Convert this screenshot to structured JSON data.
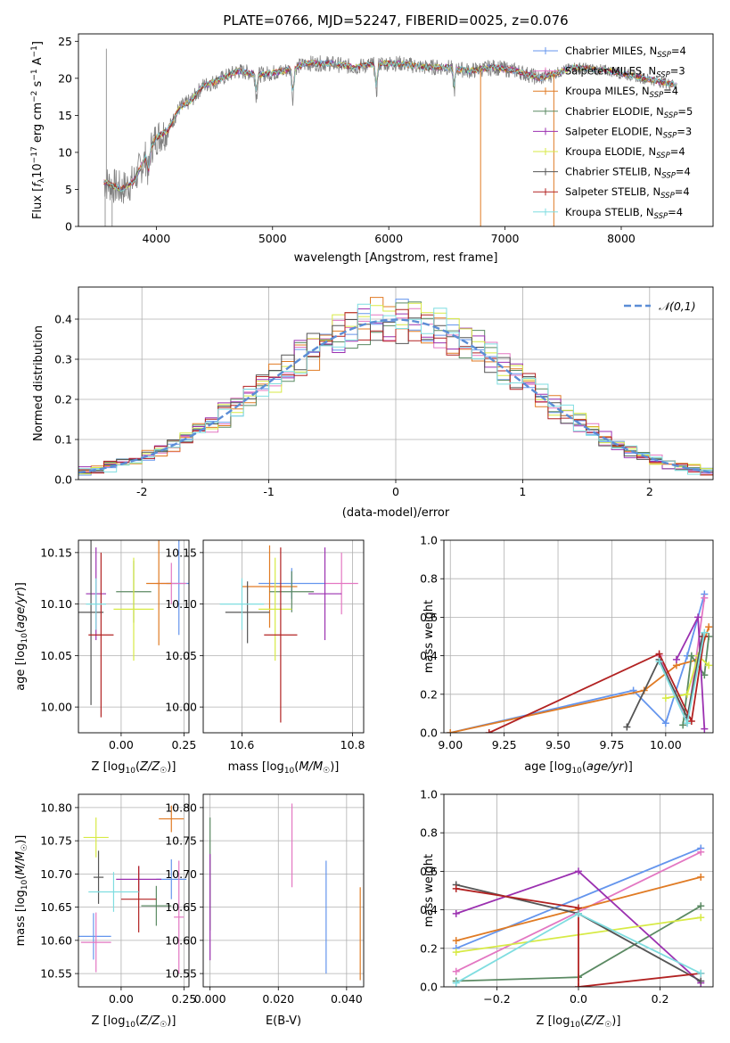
{
  "figure": {
    "title": "PLATE=0766, MJD=52247, FIBERID=0025, z=0.076"
  },
  "models": [
    {
      "label": "Chabrier MILES, N",
      "sub": "SSP",
      "suffix": "=4",
      "color": "#6495ED"
    },
    {
      "label": "Salpeter MILES, N",
      "sub": "SSP",
      "suffix": "=3",
      "color": "#E377C2"
    },
    {
      "label": "Kroupa MILES, N",
      "sub": "SSP",
      "suffix": "=4",
      "color": "#E07B24"
    },
    {
      "label": "Chabrier ELODIE, N",
      "sub": "SSP",
      "suffix": "=5",
      "color": "#5B8A63"
    },
    {
      "label": "Salpeter ELODIE, N",
      "sub": "SSP",
      "suffix": "=3",
      "color": "#9B30B0"
    },
    {
      "label": "Kroupa ELODIE, N",
      "sub": "SSP",
      "suffix": "=4",
      "color": "#D7EA45"
    },
    {
      "label": "Chabrier STELIB, N",
      "sub": "SSP",
      "suffix": "=4",
      "color": "#555555"
    },
    {
      "label": "Salpeter STELIB, N",
      "sub": "SSP",
      "suffix": "=4",
      "color": "#B22222"
    },
    {
      "label": "Kroupa STELIB, N",
      "sub": "SSP",
      "suffix": "=4",
      "color": "#7FDDE0"
    }
  ],
  "chart_data": [
    {
      "type": "line",
      "name": "spectrum",
      "xlabel": "wavelength [Angstrom, rest frame]",
      "ylabel": "Flux [f_λ 10^-17 erg cm^-2 s^-1 A^-1]",
      "xlim": [
        3330,
        8790
      ],
      "ylim": [
        0,
        26
      ],
      "xticks": [
        4000,
        5000,
        6000,
        7000,
        8000
      ],
      "yticks": [
        0,
        5,
        10,
        15,
        20,
        25
      ],
      "data_color": "#808080",
      "continuum_points": [
        [
          3550,
          6
        ],
        [
          3700,
          5
        ],
        [
          3800,
          6
        ],
        [
          3900,
          9
        ],
        [
          4000,
          12
        ],
        [
          4100,
          13
        ],
        [
          4200,
          16
        ],
        [
          4300,
          17
        ],
        [
          4400,
          19
        ],
        [
          4500,
          19.5
        ],
        [
          4700,
          21
        ],
        [
          4900,
          20.5
        ],
        [
          5100,
          21
        ],
        [
          5300,
          22
        ],
        [
          5500,
          22
        ],
        [
          5700,
          21.5
        ],
        [
          5900,
          22
        ],
        [
          6100,
          22
        ],
        [
          6300,
          21.5
        ],
        [
          6500,
          21.5
        ],
        [
          6700,
          21
        ],
        [
          6900,
          21.5
        ],
        [
          7100,
          21
        ],
        [
          7300,
          20
        ],
        [
          7600,
          21.5
        ],
        [
          7900,
          21
        ],
        [
          8200,
          20
        ],
        [
          8500,
          19
        ]
      ],
      "absorption_lines": [
        [
          3933,
          3
        ],
        [
          4861,
          3
        ],
        [
          5175,
          4
        ],
        [
          5893,
          4
        ],
        [
          6563,
          3
        ]
      ]
    },
    {
      "type": "histogram",
      "name": "residuals",
      "xlabel": "(data-model)/error",
      "ylabel": "Normed distribution",
      "xlim": [
        -2.5,
        2.5
      ],
      "ylim": [
        0,
        0.48
      ],
      "xticks": [
        -2,
        -1,
        0,
        1,
        2
      ],
      "yticks": [
        0.0,
        0.1,
        0.2,
        0.3,
        0.4
      ],
      "bin_width": 0.1,
      "reference_curve": {
        "label": "𝒩(0,1)",
        "mean": 0,
        "sigma": 1,
        "color": "#5B8DD6"
      }
    },
    {
      "type": "errorbar",
      "name": "age-vs-Z",
      "xlabel": "Z [log10(Z/Z☉)]",
      "ylabel": "age  [log10(age/yr)]",
      "xlim": [
        -0.17,
        0.27
      ],
      "ylim": [
        9.975,
        10.162
      ],
      "xticks": [
        0.0,
        0.25
      ],
      "yticks": [
        10.0,
        10.05,
        10.1,
        10.15
      ],
      "points": [
        {
          "x": 0.23,
          "y": 10.12,
          "xerr": 0.05,
          "yerr": 0.05
        },
        {
          "x": 0.2,
          "y": 10.12,
          "xerr": 0.06,
          "yerr": 0.02
        },
        {
          "x": 0.15,
          "y": 10.12,
          "xerr": 0.05,
          "yerr": 0.06
        },
        {
          "x": 0.05,
          "y": 10.112,
          "xerr": 0.07,
          "yerr": 0.03
        },
        {
          "x": -0.1,
          "y": 10.11,
          "xerr": 0.04,
          "yerr": 0.045
        },
        {
          "x": 0.05,
          "y": 10.095,
          "xerr": 0.08,
          "yerr": 0.05
        },
        {
          "x": -0.12,
          "y": 10.092,
          "xerr": 0.05,
          "yerr": 0.09
        },
        {
          "x": -0.08,
          "y": 10.07,
          "xerr": 0.05,
          "yerr": 0.08
        },
        {
          "x": -0.1,
          "y": 10.1,
          "xerr": 0.04,
          "yerr": 0.025
        }
      ]
    },
    {
      "type": "errorbar",
      "name": "age-vs-mass",
      "xlabel": "mass [log10(M/M☉)]",
      "ylabel": "",
      "xlim": [
        10.53,
        10.82
      ],
      "ylim": [
        9.975,
        10.162
      ],
      "xticks": [
        10.6,
        10.8
      ],
      "yticks": [
        10.0,
        10.05,
        10.1,
        10.15
      ],
      "points": [
        {
          "x": 10.69,
          "y": 10.12,
          "xerr": 0.06,
          "yerr": 0.015
        },
        {
          "x": 10.78,
          "y": 10.12,
          "xerr": 0.03,
          "yerr": 0.03
        },
        {
          "x": 10.65,
          "y": 10.117,
          "xerr": 0.05,
          "yerr": 0.04
        },
        {
          "x": 10.69,
          "y": 10.112,
          "xerr": 0.04,
          "yerr": 0.02
        },
        {
          "x": 10.75,
          "y": 10.11,
          "xerr": 0.03,
          "yerr": 0.045
        },
        {
          "x": 10.66,
          "y": 10.095,
          "xerr": 0.03,
          "yerr": 0.05
        },
        {
          "x": 10.61,
          "y": 10.092,
          "xerr": 0.04,
          "yerr": 0.03
        },
        {
          "x": 10.67,
          "y": 10.07,
          "xerr": 0.03,
          "yerr": 0.085
        },
        {
          "x": 10.6,
          "y": 10.1,
          "xerr": 0.04,
          "yerr": 0.025
        }
      ]
    },
    {
      "type": "line",
      "name": "mass-weight-vs-age",
      "xlabel": "age  [log10(age/yr)]",
      "ylabel": "mass weight",
      "xlim": [
        8.97,
        10.22
      ],
      "ylim": [
        0,
        1.0
      ],
      "xticks": [
        9.0,
        9.25,
        9.5,
        9.75,
        10.0
      ],
      "yticks": [
        0.0,
        0.2,
        0.4,
        0.6,
        0.8,
        1.0
      ],
      "series": [
        {
          "x": [
            9.0,
            9.85,
            10.0,
            10.1,
            10.18
          ],
          "y": [
            0.0,
            0.22,
            0.05,
            0.4,
            0.72
          ]
        },
        {
          "x": [
            9.97,
            10.1,
            10.18
          ],
          "y": [
            0.4,
            0.05,
            0.7
          ]
        },
        {
          "x": [
            9.0,
            9.9,
            10.05,
            10.15,
            10.2
          ],
          "y": [
            0.0,
            0.22,
            0.35,
            0.38,
            0.55
          ]
        },
        {
          "x": [
            10.08,
            10.12,
            10.18,
            10.2
          ],
          "y": [
            0.04,
            0.4,
            0.3,
            0.5
          ]
        },
        {
          "x": [
            10.05,
            10.15,
            10.18
          ],
          "y": [
            0.38,
            0.6,
            0.02
          ]
        },
        {
          "x": [
            10.0,
            10.1,
            10.15,
            10.2
          ],
          "y": [
            0.18,
            0.2,
            0.4,
            0.35
          ]
        },
        {
          "x": [
            9.82,
            9.97,
            10.1,
            10.17
          ],
          "y": [
            0.03,
            0.38,
            0.08,
            0.5
          ]
        },
        {
          "x": [
            9.18,
            9.97,
            10.12,
            10.18
          ],
          "y": [
            0.0,
            0.41,
            0.06,
            0.5
          ]
        },
        {
          "x": [
            9.97,
            10.1,
            10.18
          ],
          "y": [
            0.37,
            0.05,
            0.52
          ]
        }
      ]
    },
    {
      "type": "errorbar",
      "name": "mass-vs-Z",
      "xlabel": "Z [log10(Z/Z☉)]",
      "ylabel": "mass [log10(M/M☉)]",
      "xlim": [
        -0.17,
        0.27
      ],
      "ylim": [
        10.53,
        10.82
      ],
      "xticks": [
        0.0,
        0.25
      ],
      "yticks": [
        10.55,
        10.6,
        10.65,
        10.7,
        10.75,
        10.8
      ],
      "points": [
        {
          "x": 0.2,
          "y": 10.692,
          "xerr": 0.06,
          "yerr": 0.03
        },
        {
          "x": 0.23,
          "y": 10.635,
          "xerr": 0.02,
          "yerr": 0.085
        },
        {
          "x": 0.2,
          "y": 10.783,
          "xerr": 0.05,
          "yerr": 0.02
        },
        {
          "x": 0.14,
          "y": 10.652,
          "xerr": 0.06,
          "yerr": 0.03
        },
        {
          "x": 0.07,
          "y": 10.692,
          "xerr": 0.09,
          "yerr": 0.02
        },
        {
          "x": -0.1,
          "y": 10.755,
          "xerr": 0.05,
          "yerr": 0.03
        },
        {
          "x": -0.09,
          "y": 10.695,
          "xerr": 0.02,
          "yerr": 0.04
        },
        {
          "x": 0.07,
          "y": 10.662,
          "xerr": 0.07,
          "yerr": 0.05
        },
        {
          "x": -0.03,
          "y": 10.673,
          "xerr": 0.1,
          "yerr": 0.03
        },
        {
          "x": -0.11,
          "y": 10.606,
          "xerr": 0.07,
          "yerr": 0.035
        },
        {
          "x": -0.1,
          "y": 10.597,
          "xerr": 0.06,
          "yerr": 0.045
        }
      ]
    },
    {
      "type": "errorbar",
      "name": "mass-vs-EBV",
      "xlabel": "E(B-V)",
      "ylabel": "",
      "xlim": [
        -0.002,
        0.045
      ],
      "ylim": [
        10.53,
        10.82
      ],
      "xticks": [
        0.0,
        0.02,
        0.04
      ],
      "yticks": [
        10.55,
        10.6,
        10.65,
        10.7,
        10.75,
        10.8
      ],
      "points": [
        {
          "x": 0.034,
          "y": 10.635,
          "yerr": 0.085
        },
        {
          "x": 0.024,
          "y": 10.743,
          "yerr": 0.063
        },
        {
          "x": 0.044,
          "y": 10.61,
          "yerr": 0.07
        },
        {
          "x": 0.0,
          "y": 10.7,
          "yerr": 0.085
        },
        {
          "x": 0.0,
          "y": 10.65,
          "yerr": 0.08
        }
      ]
    },
    {
      "type": "line",
      "name": "mass-weight-vs-Z",
      "xlabel": "Z [log10(Z/Z☉)]",
      "ylabel": "mass weight",
      "xlim": [
        -0.33,
        0.33
      ],
      "ylim": [
        0,
        1.0
      ],
      "xticks": [
        -0.2,
        0.0,
        0.2
      ],
      "yticks": [
        0.0,
        0.2,
        0.4,
        0.6,
        0.8,
        1.0
      ],
      "series": [
        {
          "x": [
            -0.3,
            0.3
          ],
          "y": [
            0.2,
            0.72
          ]
        },
        {
          "x": [
            -0.3,
            0.3
          ],
          "y": [
            0.08,
            0.7
          ]
        },
        {
          "x": [
            -0.3,
            0.3
          ],
          "y": [
            0.24,
            0.57
          ]
        },
        {
          "x": [
            -0.3,
            0.0,
            0.3
          ],
          "y": [
            0.03,
            0.05,
            0.42
          ]
        },
        {
          "x": [
            -0.3,
            0.0,
            0.3
          ],
          "y": [
            0.38,
            0.6,
            0.02
          ]
        },
        {
          "x": [
            -0.3,
            0.3
          ],
          "y": [
            0.18,
            0.36
          ]
        },
        {
          "x": [
            -0.3,
            0.0,
            0.3
          ],
          "y": [
            0.53,
            0.38,
            0.03
          ]
        },
        {
          "x": [
            -0.3,
            0.0,
            0.0,
            0.3
          ],
          "y": [
            0.51,
            0.41,
            0.0,
            0.07
          ]
        },
        {
          "x": [
            -0.3,
            0.0,
            0.3
          ],
          "y": [
            0.02,
            0.38,
            0.07
          ]
        }
      ]
    }
  ]
}
